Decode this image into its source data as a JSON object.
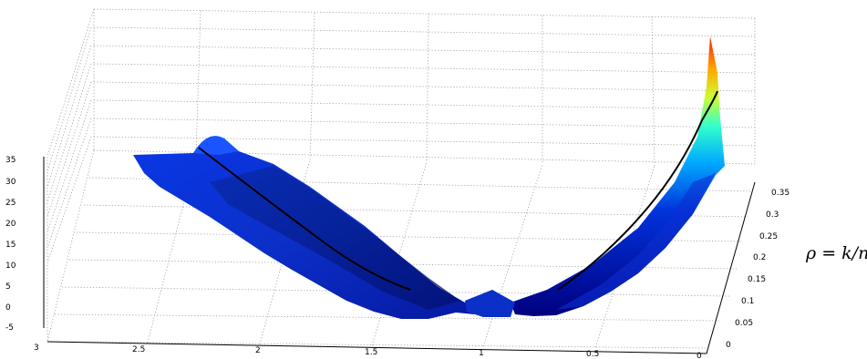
{
  "chart_data": {
    "type": "surface",
    "colormap": "jet",
    "z_ticks": [
      "-5",
      "0",
      "5",
      "10",
      "15",
      "20",
      "25",
      "30",
      "35"
    ],
    "x_ticks": [
      "3",
      "2.5",
      "2",
      "1.5",
      "1",
      "0.5",
      "0"
    ],
    "rho_ticks": [
      "0",
      "0.05",
      "0.1",
      "0.15",
      "0.2",
      "0.25",
      "0.3",
      "0.35"
    ],
    "rho_label": "ρ = k/n",
    "zlim": [
      -5,
      35
    ],
    "xlim": [
      0,
      3
    ],
    "rholim": [
      0,
      0.35
    ],
    "grid": true,
    "curve": {
      "x": [
        2.55,
        2.4,
        2.2,
        2.0,
        1.8,
        1.6,
        1.4,
        1.3,
        1.0,
        0.7,
        0.6,
        0.5,
        0.4,
        0.3,
        0.2,
        0.15,
        0.12
      ],
      "z": [
        13,
        11.5,
        9.5,
        7.5,
        5,
        2.5,
        0.5,
        0,
        0,
        0.5,
        2.5,
        6.5,
        11.5,
        17,
        23,
        27.5,
        30
      ]
    }
  },
  "colors": {
    "background": "#ffffff",
    "surface_low": "#00008f",
    "surface_high": "#ff2000",
    "curve": "#000000"
  }
}
